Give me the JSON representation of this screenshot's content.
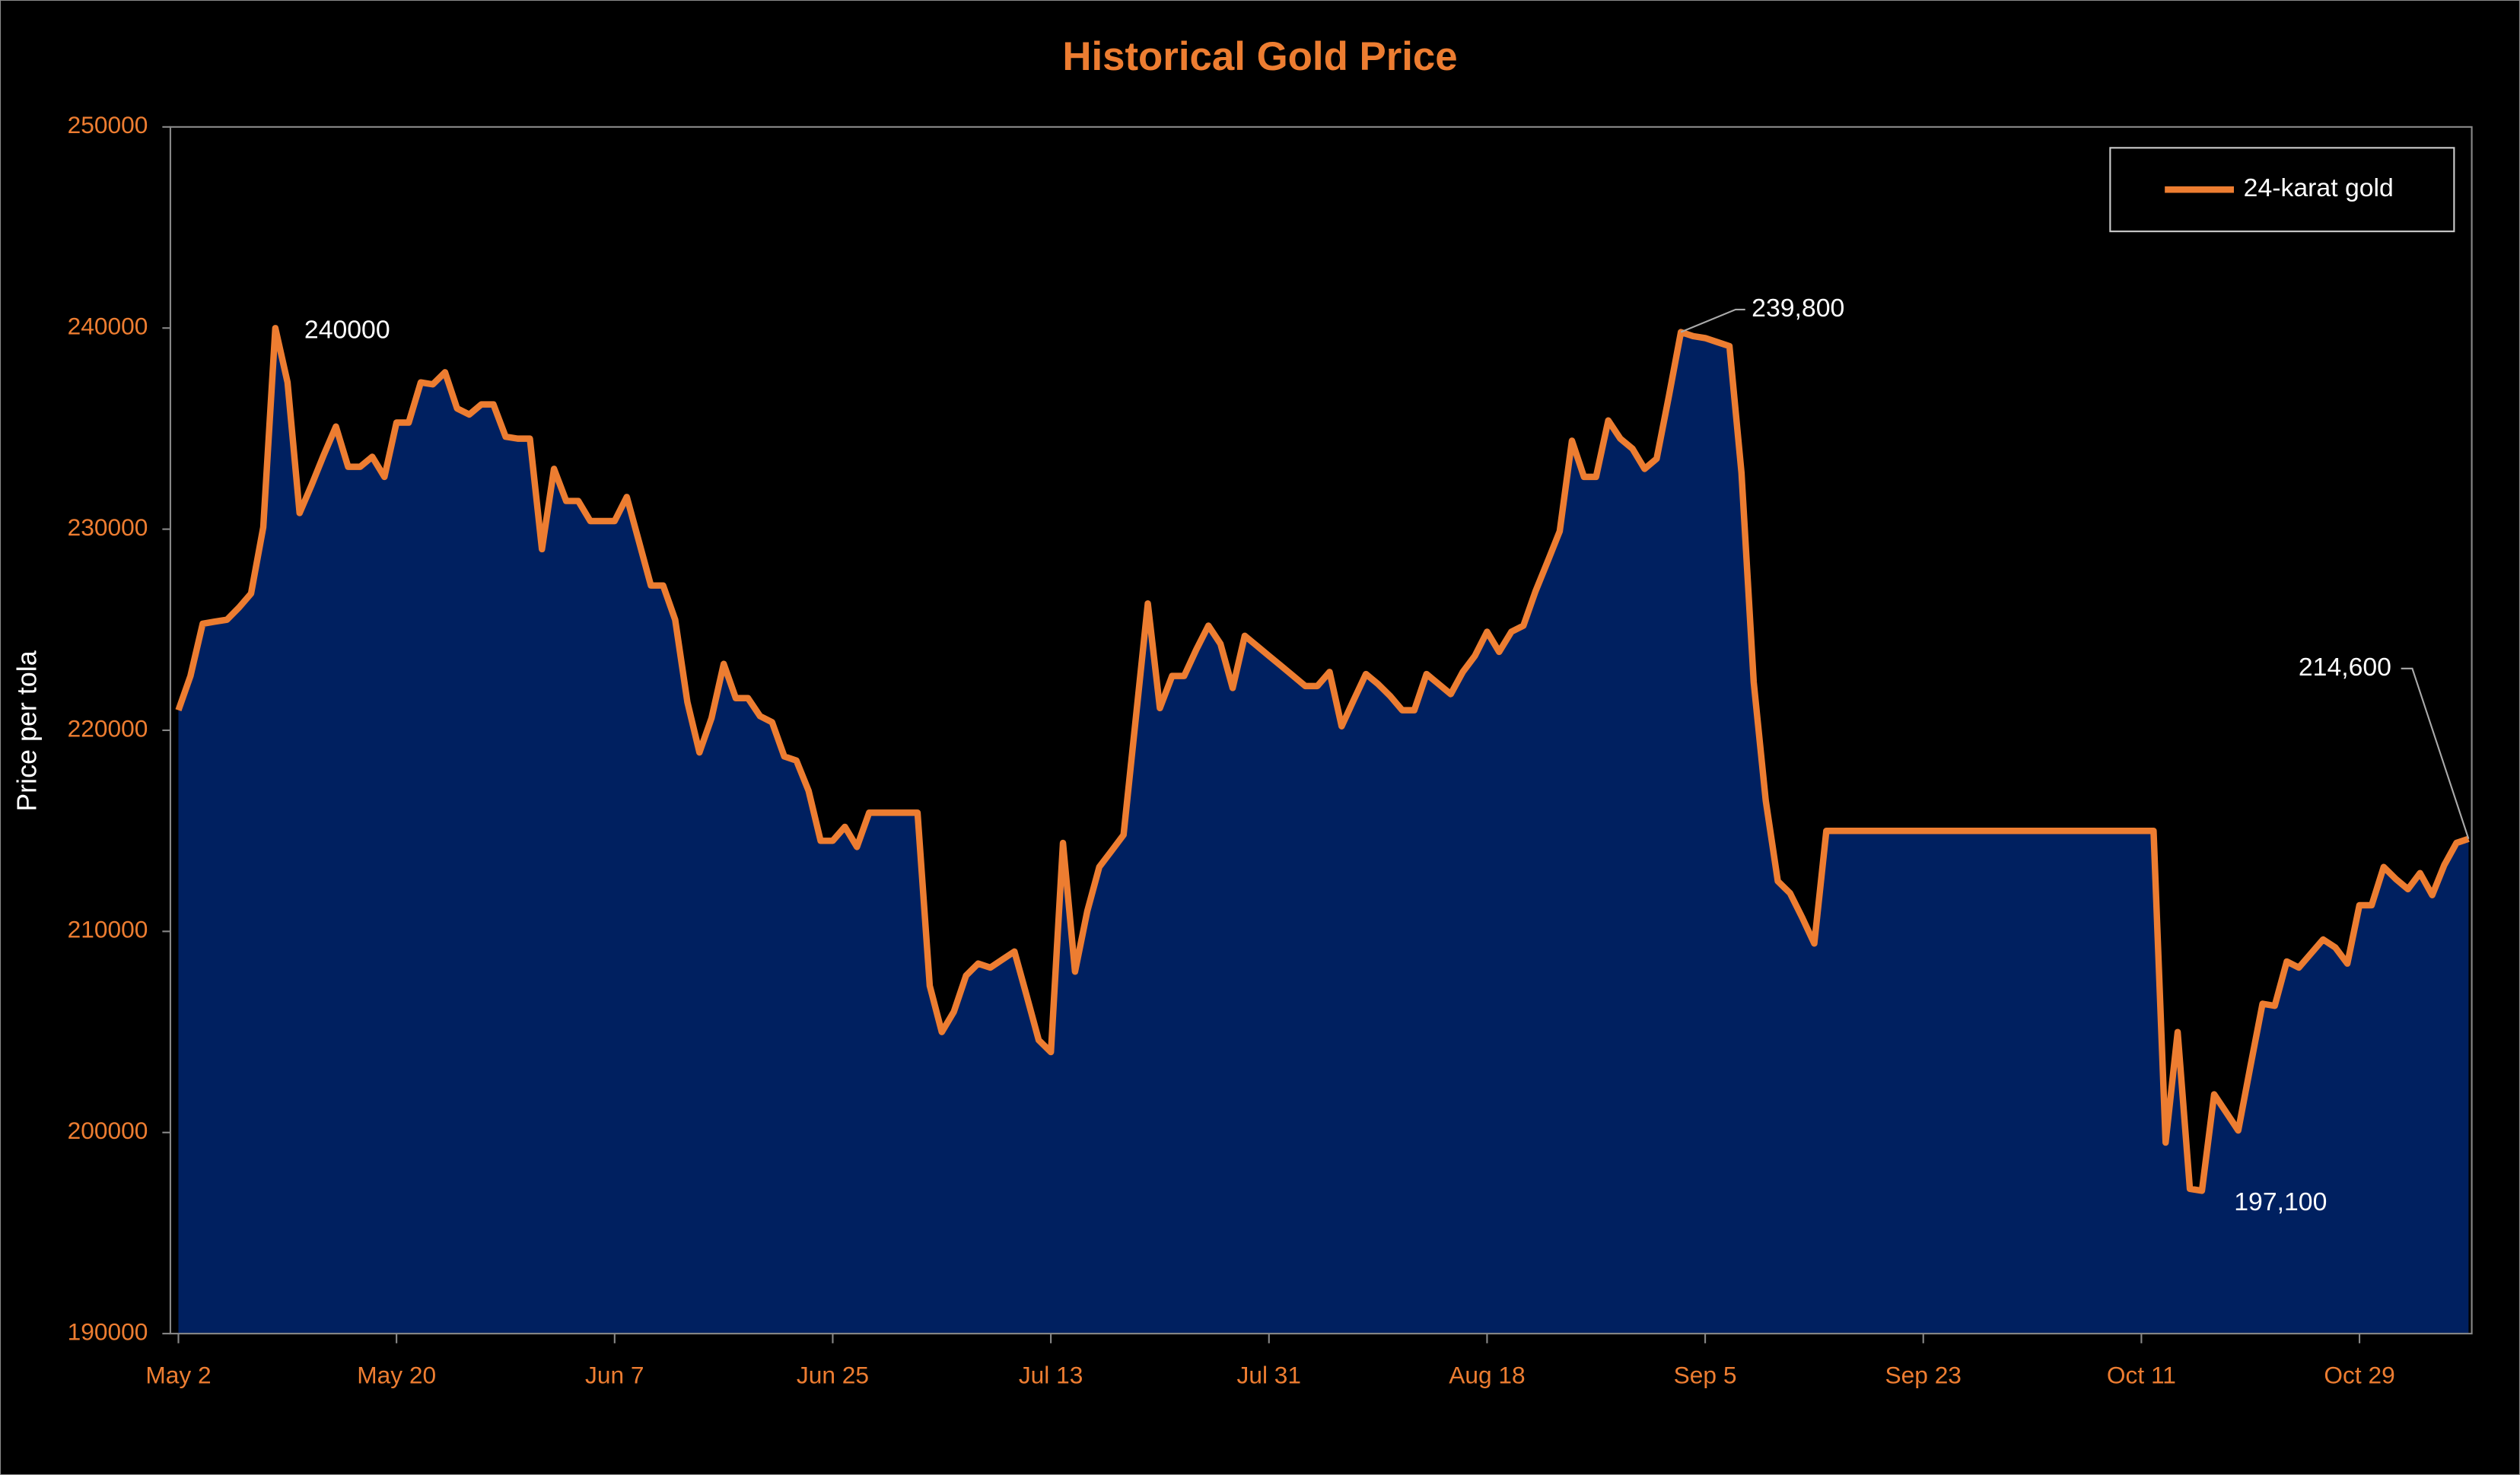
{
  "chart_data": {
    "type": "area",
    "title": "Historical Gold Price",
    "y_label": "Price per tola",
    "ylim": [
      190000,
      250000
    ],
    "yticks": [
      190000,
      200000,
      210000,
      220000,
      230000,
      240000,
      250000
    ],
    "grid": false,
    "legend": "top-right",
    "categories": [
      "May 2",
      null,
      null,
      null,
      null,
      null,
      null,
      null,
      null,
      null,
      null,
      null,
      null,
      null,
      null,
      null,
      null,
      null,
      "May 20",
      null,
      null,
      null,
      null,
      null,
      null,
      null,
      null,
      null,
      null,
      null,
      null,
      null,
      null,
      null,
      null,
      null,
      "Jun 7",
      null,
      null,
      null,
      null,
      null,
      null,
      null,
      null,
      null,
      null,
      null,
      null,
      null,
      null,
      null,
      null,
      null,
      "Jun 25",
      null,
      null,
      null,
      null,
      null,
      null,
      null,
      null,
      null,
      null,
      null,
      null,
      null,
      null,
      null,
      null,
      null,
      "Jul 13",
      null,
      null,
      null,
      null,
      null,
      null,
      null,
      null,
      null,
      null,
      null,
      null,
      null,
      null,
      null,
      null,
      null,
      "Jul 31",
      null,
      null,
      null,
      null,
      null,
      null,
      null,
      null,
      null,
      null,
      null,
      null,
      null,
      null,
      null,
      null,
      null,
      "Aug 18",
      null,
      null,
      null,
      null,
      null,
      null,
      null,
      null,
      null,
      null,
      null,
      null,
      null,
      null,
      null,
      null,
      null,
      "Sep 5",
      null,
      null,
      null,
      null,
      null,
      null,
      null,
      null,
      null,
      null,
      null,
      null,
      null,
      null,
      null,
      null,
      null,
      "Sep 23",
      null,
      null,
      null,
      null,
      null,
      null,
      null,
      null,
      null,
      null,
      null,
      null,
      null,
      null,
      null,
      null,
      null,
      "Oct 11",
      null,
      null,
      null,
      null,
      null,
      null,
      null,
      null,
      null,
      null,
      null,
      null,
      null,
      null,
      null,
      null,
      null,
      "Oct 29",
      null,
      null,
      null,
      null,
      null,
      null,
      null,
      null,
      null
    ],
    "series": [
      {
        "name": "24-karat gold",
        "color": "#ed7d31",
        "fill": "#002060",
        "values": [
          221000,
          222700,
          225300,
          225400,
          225500,
          226100,
          226800,
          230100,
          240000,
          237300,
          230800,
          232200,
          233700,
          235100,
          233100,
          233100,
          233600,
          232600,
          235300,
          235300,
          237300,
          237200,
          237800,
          236000,
          235700,
          236200,
          236200,
          234600,
          234500,
          234500,
          229000,
          233000,
          231400,
          231400,
          230400,
          230400,
          230400,
          231600,
          229400,
          227200,
          227200,
          225500,
          221400,
          218900,
          220600,
          223300,
          221600,
          221600,
          220700,
          220400,
          218700,
          218500,
          217000,
          214500,
          214500,
          215200,
          214200,
          215900,
          215900,
          215900,
          215900,
          215900,
          207300,
          205000,
          206000,
          207800,
          208400,
          208200,
          208600,
          209000,
          206800,
          204600,
          204000,
          214400,
          208000,
          211000,
          213200,
          214000,
          214800,
          220500,
          226300,
          221100,
          222700,
          222700,
          224000,
          225200,
          224300,
          222100,
          224700,
          224200,
          223700,
          223200,
          222700,
          222200,
          222200,
          222900,
          220200,
          221500,
          222800,
          222300,
          221700,
          221000,
          221000,
          222800,
          222300,
          221800,
          222900,
          223700,
          224900,
          223900,
          224900,
          225200,
          226900,
          228400,
          229900,
          234400,
          232600,
          232600,
          235400,
          234500,
          234000,
          233000,
          233500,
          236600,
          239800,
          239600,
          239500,
          239300,
          239100,
          232800,
          222400,
          216500,
          212500,
          211900,
          210700,
          209400,
          215000,
          215000,
          215000,
          215000,
          215000,
          215000,
          215000,
          215000,
          215000,
          215000,
          215000,
          215000,
          215000,
          215000,
          215000,
          215000,
          215000,
          215000,
          215000,
          215000,
          215000,
          215000,
          215000,
          215000,
          215000,
          215000,
          215000,
          215000,
          199500,
          205000,
          197200,
          197100,
          201900,
          201000,
          200100,
          203300,
          206400,
          206300,
          208500,
          208200,
          208900,
          209600,
          209200,
          208400,
          211300,
          211300,
          213200,
          212600,
          212100,
          212900,
          211800,
          213300,
          214400,
          214600
        ],
        "value_labels": [
          null,
          null,
          null,
          null,
          null,
          null,
          null,
          null,
          "240000",
          null,
          null,
          null,
          null,
          null,
          null,
          null,
          null,
          null,
          null,
          null,
          null,
          null,
          null,
          null,
          null,
          null,
          null,
          null,
          null,
          null,
          null,
          null,
          null,
          null,
          null,
          null,
          null,
          null,
          null,
          null,
          null,
          null,
          null,
          null,
          null,
          null,
          null,
          null,
          null,
          null,
          null,
          null,
          null,
          null,
          null,
          null,
          null,
          null,
          null,
          null,
          null,
          null,
          null,
          null,
          null,
          null,
          null,
          null,
          null,
          null,
          null,
          null,
          null,
          null,
          null,
          null,
          null,
          null,
          null,
          null,
          null,
          null,
          null,
          null,
          null,
          null,
          null,
          null,
          null,
          null,
          null,
          null,
          null,
          null,
          null,
          null,
          null,
          null,
          null,
          null,
          null,
          null,
          null,
          null,
          null,
          null,
          null,
          null,
          null,
          null,
          null,
          null,
          null,
          null,
          null,
          null,
          null,
          null,
          null,
          null,
          null,
          null,
          null,
          null,
          "239,800",
          null,
          null,
          null,
          null,
          null,
          null,
          null,
          null,
          null,
          null,
          null,
          null,
          null,
          null,
          null,
          null,
          null,
          null,
          null,
          null,
          null,
          null,
          null,
          null,
          null,
          null,
          null,
          null,
          null,
          null,
          null,
          null,
          null,
          null,
          null,
          null,
          null,
          null,
          null,
          null,
          null,
          null,
          "197,100",
          null,
          null,
          null,
          null,
          null,
          null,
          null,
          null,
          null,
          null,
          null,
          null,
          null,
          null,
          null,
          null,
          null,
          null,
          null,
          null,
          null,
          "214,600"
        ]
      }
    ]
  }
}
